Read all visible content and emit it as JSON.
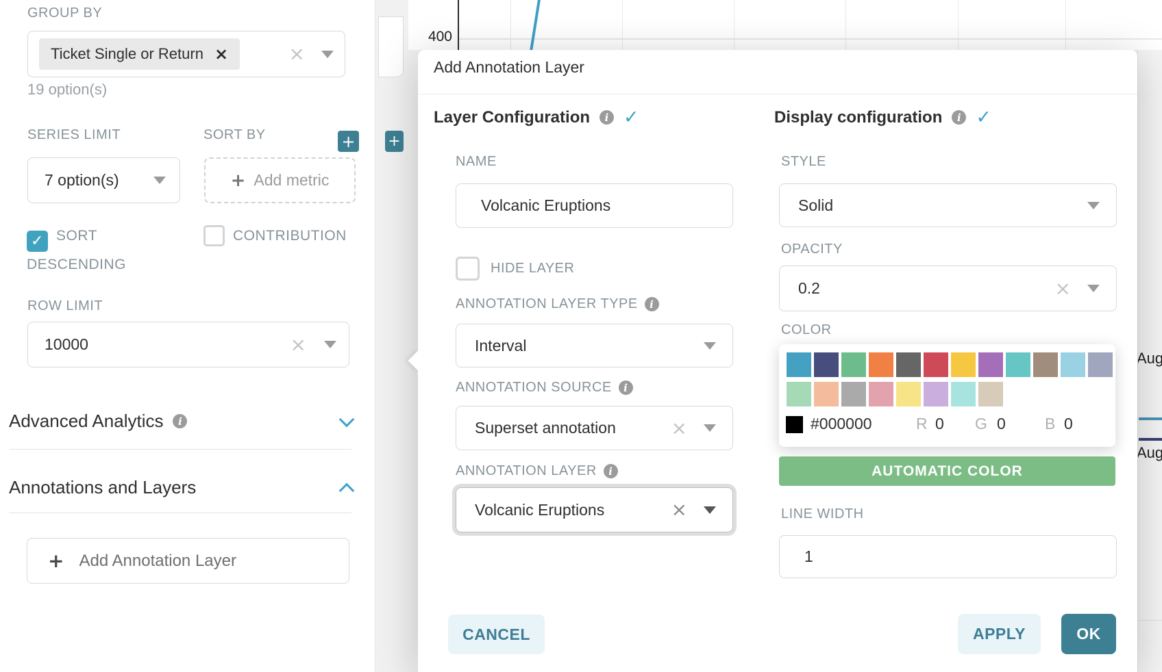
{
  "theme": {
    "accent_blue": "#41a2c0",
    "teal_button": "#3d7f93",
    "green_button": "#7cbd86",
    "light_button_bg": "#e9f4f8",
    "light_button_text": "#3e7e96"
  },
  "icons": {
    "clear": "×",
    "tag_close": "×",
    "check": "✓",
    "plus": "+",
    "info": "i"
  },
  "panel": {
    "group_by_label": "GROUP BY",
    "group_by_tag": "Ticket Single or Return",
    "group_by_hint": "19 option(s)",
    "series_limit_label": "SERIES LIMIT",
    "series_limit_value": "7 option(s)",
    "sort_by_label": "SORT BY",
    "add_metric_label": "Add metric",
    "sort_descending_label": "SORT DESCENDING",
    "contribution_label": "CONTRIBUTION",
    "row_limit_label": "ROW LIMIT",
    "row_limit_value": "10000",
    "advanced_analytics_label": "Advanced Analytics",
    "annotations_layers_label": "Annotations and Layers",
    "add_annotation_label": "Add Annotation Layer"
  },
  "chart": {
    "y_tick": "400",
    "line_color": "#3ca0c7",
    "right_label_1": "Aug",
    "right_label_2": "Aug",
    "segment_color_1": "#4a92b4",
    "segment_color_2": "#36406e"
  },
  "modal": {
    "title": "Add Annotation Layer",
    "layer_heading": "Layer Configuration",
    "display_heading": "Display configuration",
    "name_label": "NAME",
    "name_value": "Volcanic Eruptions",
    "hide_layer_label": "HIDE LAYER",
    "type_label": "ANNOTATION LAYER TYPE",
    "type_value": "Interval",
    "source_label": "ANNOTATION SOURCE",
    "source_value": "Superset annotation",
    "layer_label": "ANNOTATION LAYER",
    "layer_value": "Volcanic Eruptions",
    "style_label": "STYLE",
    "style_value": "Solid",
    "opacity_label": "OPACITY",
    "opacity_value": "0.2",
    "color_label": "COLOR",
    "auto_color_label": "AUTOMATIC COLOR",
    "line_width_label": "LINE WIDTH",
    "line_width_value": "1",
    "cancel_label": "CANCEL",
    "apply_label": "APPLY",
    "ok_label": "OK"
  },
  "color_picker": {
    "rows": [
      [
        "#45a1c2",
        "#474e7d",
        "#6cbd8b",
        "#f08044",
        "#666666",
        "#ce4a58",
        "#f6c740",
        "#a46fb8",
        "#65c6c3",
        "#a08d7c",
        "#9ad2e4",
        "#a0a6bd"
      ],
      [
        "#a6d9b6",
        "#f4bb9c",
        "#aaaaaa",
        "#e2a3ae",
        "#f7e487",
        "#caaede",
        "#a8e4df",
        "#d7cbb9"
      ]
    ],
    "hex": "#000000",
    "r_label": "R",
    "r_value": "0",
    "g_label": "G",
    "g_value": "0",
    "b_label": "B",
    "b_value": "0"
  }
}
